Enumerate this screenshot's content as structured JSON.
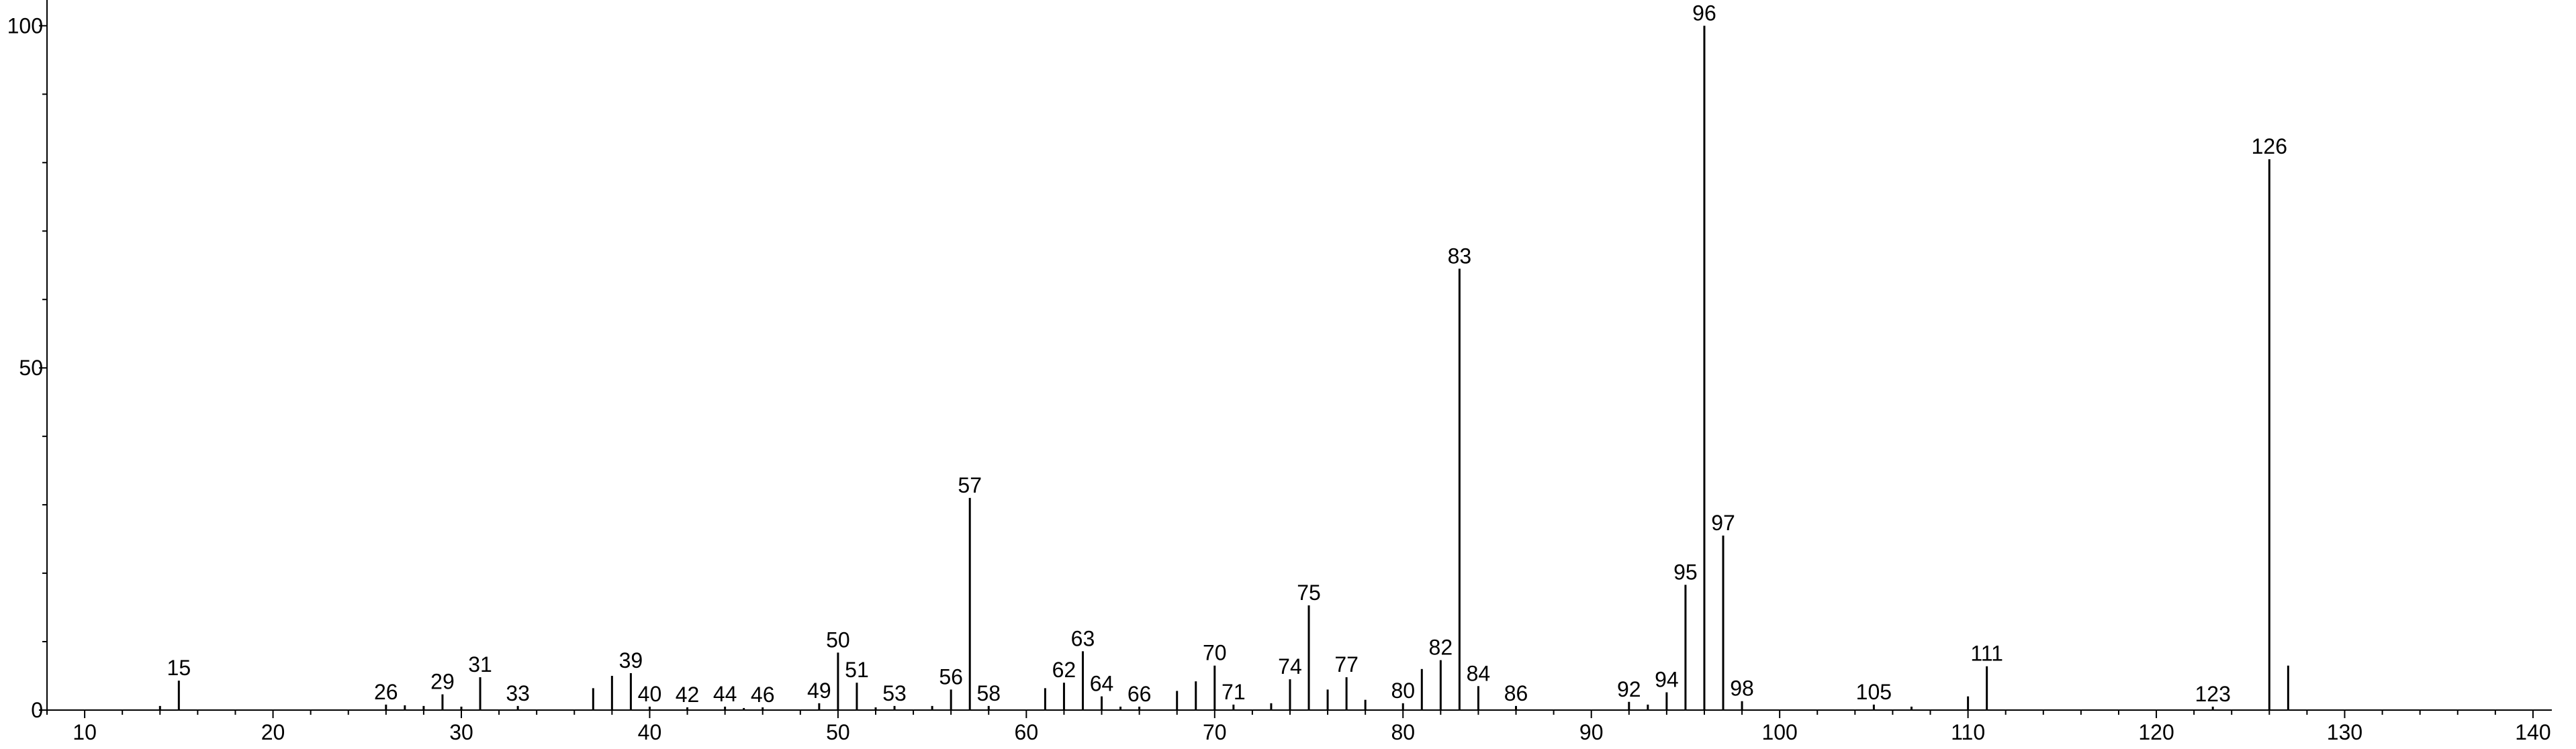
{
  "chart_data": {
    "type": "bar",
    "title": "",
    "xlabel": "",
    "ylabel": "",
    "xlim": [
      8,
      141
    ],
    "ylim": [
      0,
      102
    ],
    "x_ticks": [
      10,
      20,
      30,
      40,
      50,
      60,
      70,
      80,
      90,
      100,
      110,
      120,
      130,
      140
    ],
    "y_ticks": [
      0,
      50,
      100
    ],
    "grid": false,
    "peaks": [
      {
        "x": 14,
        "y": 0.6,
        "label": ""
      },
      {
        "x": 15,
        "y": 4.3,
        "label": "15"
      },
      {
        "x": 26,
        "y": 0.8,
        "label": "26"
      },
      {
        "x": 27,
        "y": 0.7,
        "label": ""
      },
      {
        "x": 28,
        "y": 0.6,
        "label": ""
      },
      {
        "x": 29,
        "y": 2.3,
        "label": "29"
      },
      {
        "x": 30,
        "y": 0.5,
        "label": ""
      },
      {
        "x": 31,
        "y": 4.8,
        "label": "31"
      },
      {
        "x": 33,
        "y": 0.6,
        "label": "33"
      },
      {
        "x": 37,
        "y": 3.2,
        "label": ""
      },
      {
        "x": 38,
        "y": 5.0,
        "label": ""
      },
      {
        "x": 39,
        "y": 5.4,
        "label": "39"
      },
      {
        "x": 40,
        "y": 0.5,
        "label": "40"
      },
      {
        "x": 42,
        "y": 0.4,
        "label": "42"
      },
      {
        "x": 44,
        "y": 0.5,
        "label": "44"
      },
      {
        "x": 45,
        "y": 0.3,
        "label": ""
      },
      {
        "x": 46,
        "y": 0.4,
        "label": "46"
      },
      {
        "x": 49,
        "y": 1.0,
        "label": "49"
      },
      {
        "x": 50,
        "y": 8.4,
        "label": "50"
      },
      {
        "x": 51,
        "y": 4.0,
        "label": "51"
      },
      {
        "x": 52,
        "y": 0.4,
        "label": ""
      },
      {
        "x": 53,
        "y": 0.6,
        "label": "53"
      },
      {
        "x": 55,
        "y": 0.6,
        "label": ""
      },
      {
        "x": 56,
        "y": 3.0,
        "label": "56"
      },
      {
        "x": 57,
        "y": 31.0,
        "label": "57"
      },
      {
        "x": 58,
        "y": 0.6,
        "label": "58"
      },
      {
        "x": 61,
        "y": 3.2,
        "label": ""
      },
      {
        "x": 62,
        "y": 4.0,
        "label": "62"
      },
      {
        "x": 63,
        "y": 8.6,
        "label": "63"
      },
      {
        "x": 64,
        "y": 2.0,
        "label": "64"
      },
      {
        "x": 65,
        "y": 0.5,
        "label": ""
      },
      {
        "x": 66,
        "y": 0.5,
        "label": "66"
      },
      {
        "x": 68,
        "y": 2.8,
        "label": ""
      },
      {
        "x": 69,
        "y": 4.2,
        "label": ""
      },
      {
        "x": 70,
        "y": 6.5,
        "label": "70"
      },
      {
        "x": 71,
        "y": 0.8,
        "label": "71"
      },
      {
        "x": 73,
        "y": 1.0,
        "label": ""
      },
      {
        "x": 74,
        "y": 4.5,
        "label": "74"
      },
      {
        "x": 75,
        "y": 15.3,
        "label": "75"
      },
      {
        "x": 76,
        "y": 3.0,
        "label": ""
      },
      {
        "x": 77,
        "y": 4.8,
        "label": "77"
      },
      {
        "x": 78,
        "y": 1.5,
        "label": ""
      },
      {
        "x": 80,
        "y": 1.0,
        "label": "80"
      },
      {
        "x": 81,
        "y": 6.0,
        "label": ""
      },
      {
        "x": 82,
        "y": 7.3,
        "label": "82"
      },
      {
        "x": 83,
        "y": 64.5,
        "label": "83"
      },
      {
        "x": 84,
        "y": 3.5,
        "label": "84"
      },
      {
        "x": 86,
        "y": 0.6,
        "label": "86"
      },
      {
        "x": 92,
        "y": 1.2,
        "label": "92"
      },
      {
        "x": 93,
        "y": 0.8,
        "label": ""
      },
      {
        "x": 94,
        "y": 2.6,
        "label": "94"
      },
      {
        "x": 95,
        "y": 18.3,
        "label": "95"
      },
      {
        "x": 96,
        "y": 100,
        "label": "96"
      },
      {
        "x": 97,
        "y": 25.5,
        "label": "97"
      },
      {
        "x": 98,
        "y": 1.3,
        "label": "98"
      },
      {
        "x": 105,
        "y": 0.8,
        "label": "105"
      },
      {
        "x": 107,
        "y": 0.5,
        "label": ""
      },
      {
        "x": 110,
        "y": 2.0,
        "label": ""
      },
      {
        "x": 111,
        "y": 6.4,
        "label": "111"
      },
      {
        "x": 123,
        "y": 0.5,
        "label": "123"
      },
      {
        "x": 126,
        "y": 80.5,
        "label": "126"
      },
      {
        "x": 127,
        "y": 6.5,
        "label": ""
      }
    ]
  }
}
